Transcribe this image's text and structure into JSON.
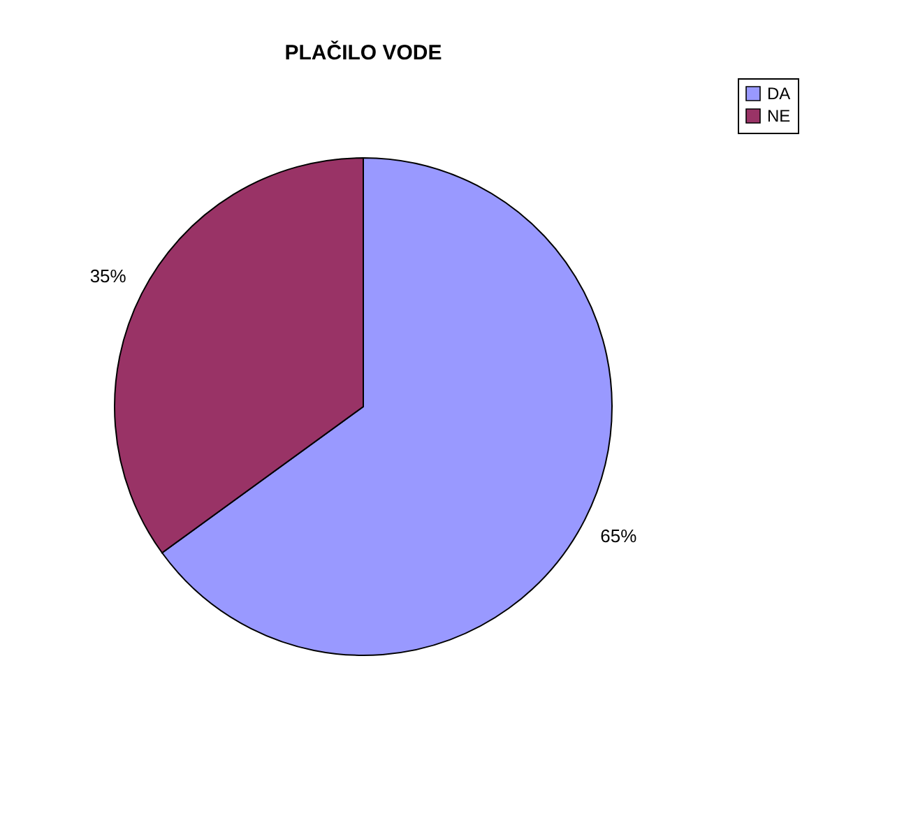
{
  "chart_data": {
    "type": "pie",
    "title": "PLAČILO VODE",
    "categories": [
      "DA",
      "NE"
    ],
    "values": [
      65,
      35
    ],
    "colors": [
      "#9999ff",
      "#993366"
    ],
    "value_labels": [
      "65%",
      "35%"
    ],
    "legend": "right"
  }
}
